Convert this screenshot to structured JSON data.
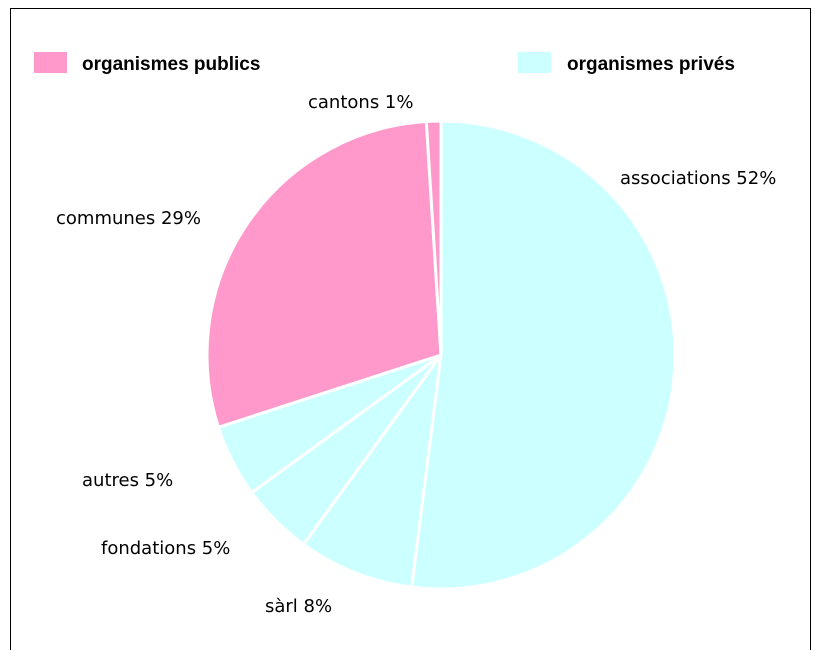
{
  "chart_data": {
    "type": "pie",
    "legend": [
      {
        "label": "organismes publics",
        "color": "#ff99cc"
      },
      {
        "label": "organismes privés",
        "color": "#ccffff"
      }
    ],
    "slices": [
      {
        "name": "associations",
        "value": 52,
        "group": "organismes privés",
        "label": "associations 52%"
      },
      {
        "name": "sàrl",
        "value": 8,
        "group": "organismes privés",
        "label": "sàrl 8%"
      },
      {
        "name": "fondations",
        "value": 5,
        "group": "organismes privés",
        "label": "fondations 5%"
      },
      {
        "name": "autres",
        "value": 5,
        "group": "organismes privés",
        "label": "autres 5%"
      },
      {
        "name": "communes",
        "value": 29,
        "group": "organismes publics",
        "label": "communes 29%"
      },
      {
        "name": "cantons",
        "value": 1,
        "group": "organismes publics",
        "label": "cantons 1%"
      }
    ],
    "legend_position": "top",
    "start_angle": "12 o'clock",
    "direction": "clockwise"
  }
}
